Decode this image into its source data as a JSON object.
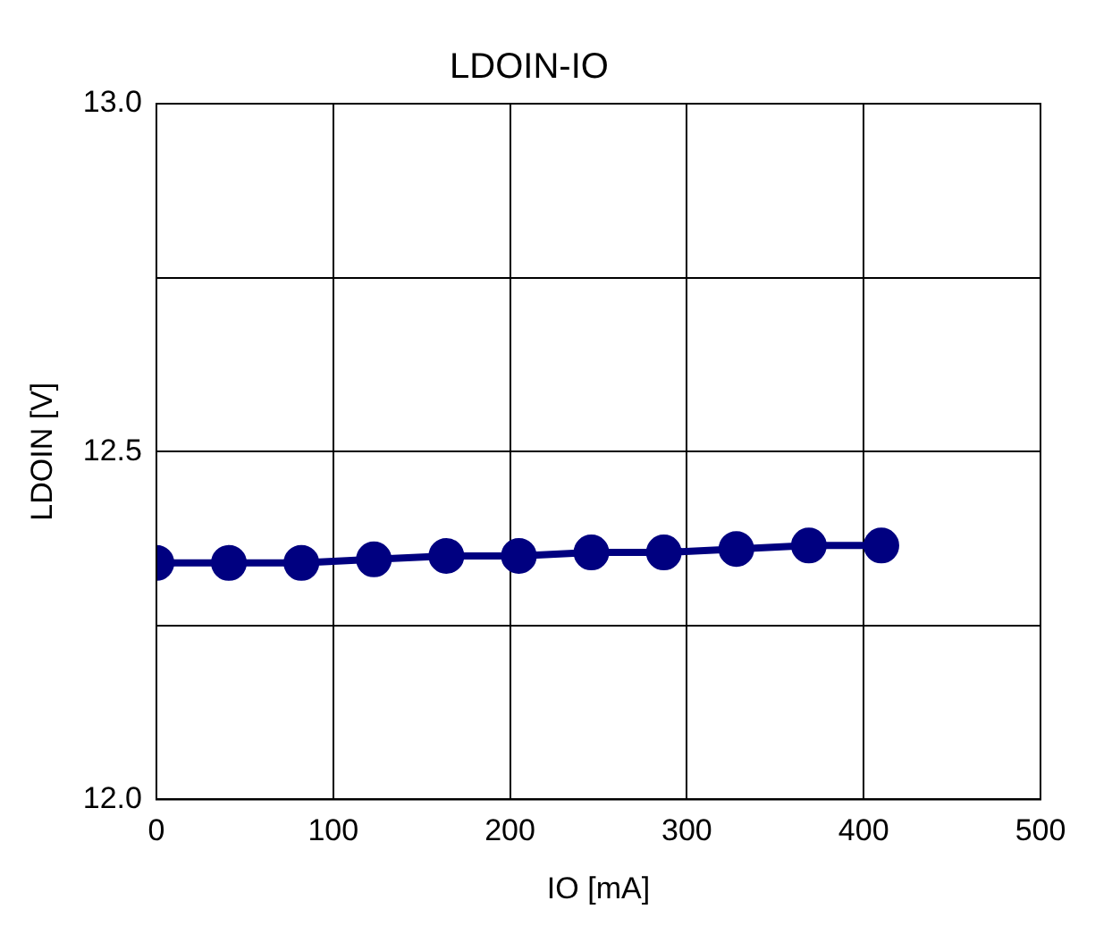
{
  "chart_data": {
    "type": "line",
    "title": "LDOIN-IO",
    "xlabel": "IO [mA]",
    "ylabel": "LDOIN [V]",
    "x": [
      0,
      41,
      82,
      123,
      164,
      205,
      246,
      287,
      328,
      369,
      410
    ],
    "series": [
      {
        "color": "#000080",
        "values": [
          12.34,
          12.34,
          12.34,
          12.345,
          12.35,
          12.35,
          12.355,
          12.355,
          12.36,
          12.365,
          12.365
        ]
      }
    ],
    "xlim": [
      0,
      500
    ],
    "xticks": [
      0,
      100,
      200,
      300,
      400,
      500
    ],
    "ylim": [
      12.0,
      13.0
    ],
    "yticks": [
      {
        "value": 12.0,
        "label": "12.0"
      },
      {
        "value": 12.25,
        "label": null
      },
      {
        "value": 12.5,
        "label": "12.5"
      },
      {
        "value": 12.75,
        "label": null
      },
      {
        "value": 13.0,
        "label": "13.0"
      }
    ],
    "grid": true,
    "legend": false,
    "marker": "circle",
    "line_style": "solid"
  }
}
